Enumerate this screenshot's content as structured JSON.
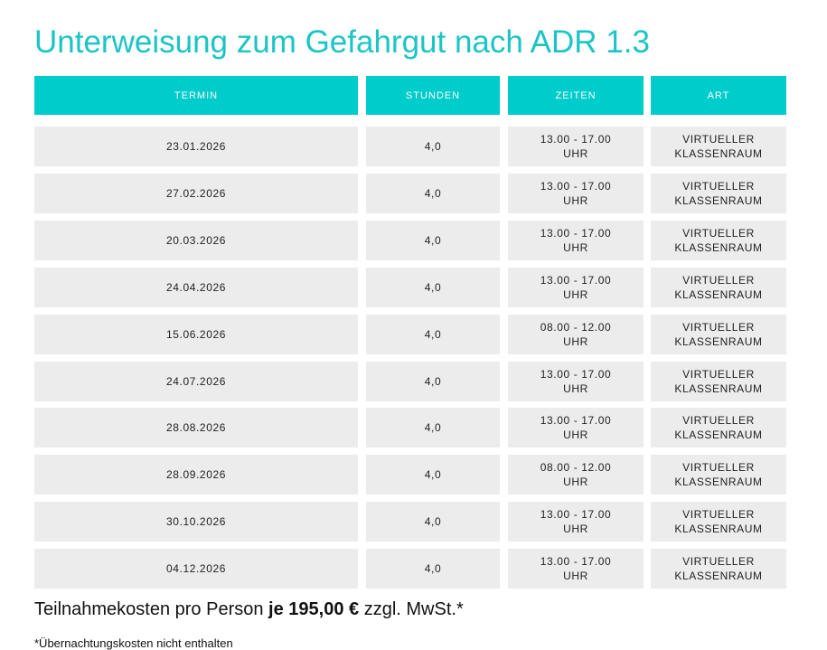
{
  "title": "Unterweisung zum Gefahrgut nach ADR 1.3",
  "table": {
    "header": [
      "TERMIN",
      "STUNDEN",
      "ZEITEN",
      "ART"
    ],
    "rows": [
      [
        "23.01.2026",
        "4,0",
        "13.00 - 17.00 UHR",
        "VIRTUELLER KLASSENRAUM"
      ],
      [
        "27.02.2026",
        "4,0",
        "13.00 - 17.00 UHR",
        "VIRTUELLER KLASSENRAUM"
      ],
      [
        "20.03.2026",
        "4,0",
        "13.00 - 17.00 UHR",
        "VIRTUELLER KLASSENRAUM"
      ],
      [
        "24.04.2026",
        "4,0",
        "13.00 - 17.00 UHR",
        "VIRTUELLER KLASSENRAUM"
      ],
      [
        "15.06.2026",
        "4,0",
        "08.00 - 12.00 UHR",
        "VIRTUELLER KLASSENRAUM"
      ],
      [
        "24.07.2026",
        "4,0",
        "13.00 - 17.00 UHR",
        "VIRTUELLER KLASSENRAUM"
      ],
      [
        "28.08.2026",
        "4,0",
        "13.00 - 17.00 UHR",
        "VIRTUELLER KLASSENRAUM"
      ],
      [
        "28.09.2026",
        "4,0",
        "08.00 - 12.00 UHR",
        "VIRTUELLER KLASSENRAUM"
      ],
      [
        "30.10.2026",
        "4,0",
        "13.00 - 17.00 UHR",
        "VIRTUELLER KLASSENRAUM"
      ],
      [
        "04.12.2026",
        "4,0",
        "13.00 - 17.00 UHR",
        "VIRTUELLER KLASSENRAUM"
      ]
    ]
  },
  "price": {
    "before": "Teilnahmekosten pro Person",
    "amount": "je 195,00 €",
    "after": "zzgl. MwSt.*"
  },
  "footnote": "*Übernachtungskosten nicht enthalten"
}
